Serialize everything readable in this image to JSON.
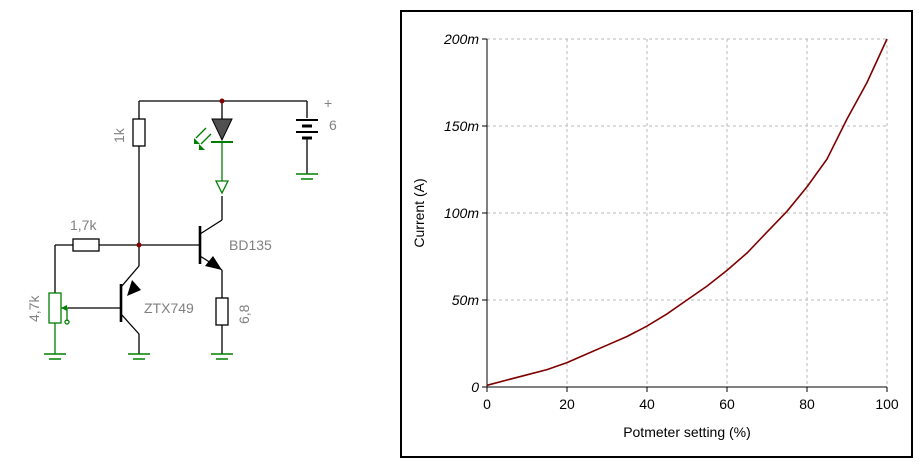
{
  "schematic": {
    "battery_value": "6",
    "battery_plus": "+",
    "r_top_label": "1k",
    "r_base_label": "1,7k",
    "pot_label": "4,7k",
    "q1_label": "ZTX749",
    "q2_label": "BD135",
    "r_emitter_label": "6,8"
  },
  "chart_data": {
    "type": "line",
    "xlabel": "Potmeter setting (%)",
    "ylabel": "Current (A)",
    "xlim": [
      0,
      100
    ],
    "ylim": [
      0,
      0.2
    ],
    "x_ticks": [
      {
        "value": 0,
        "label": "0"
      },
      {
        "value": 20,
        "label": "20"
      },
      {
        "value": 40,
        "label": "40"
      },
      {
        "value": 60,
        "label": "60"
      },
      {
        "value": 80,
        "label": "80"
      },
      {
        "value": 100,
        "label": "100"
      }
    ],
    "y_ticks": [
      {
        "value": 0,
        "label": "0"
      },
      {
        "value": 0.05,
        "label": "50m"
      },
      {
        "value": 0.1,
        "label": "100m"
      },
      {
        "value": 0.15,
        "label": "150m"
      },
      {
        "value": 0.2,
        "label": "200m"
      }
    ],
    "grid": true,
    "line_color": "#800000",
    "series": [
      {
        "x": [
          0,
          5,
          10,
          15,
          20,
          25,
          30,
          35,
          40,
          45,
          50,
          55,
          60,
          65,
          70,
          75,
          80,
          85,
          90,
          95,
          100
        ],
        "y": [
          0.001,
          0.004,
          0.007,
          0.01,
          0.014,
          0.019,
          0.024,
          0.029,
          0.035,
          0.042,
          0.05,
          0.058,
          0.067,
          0.077,
          0.089,
          0.101,
          0.115,
          0.131,
          0.154,
          0.175,
          0.2
        ]
      }
    ]
  }
}
